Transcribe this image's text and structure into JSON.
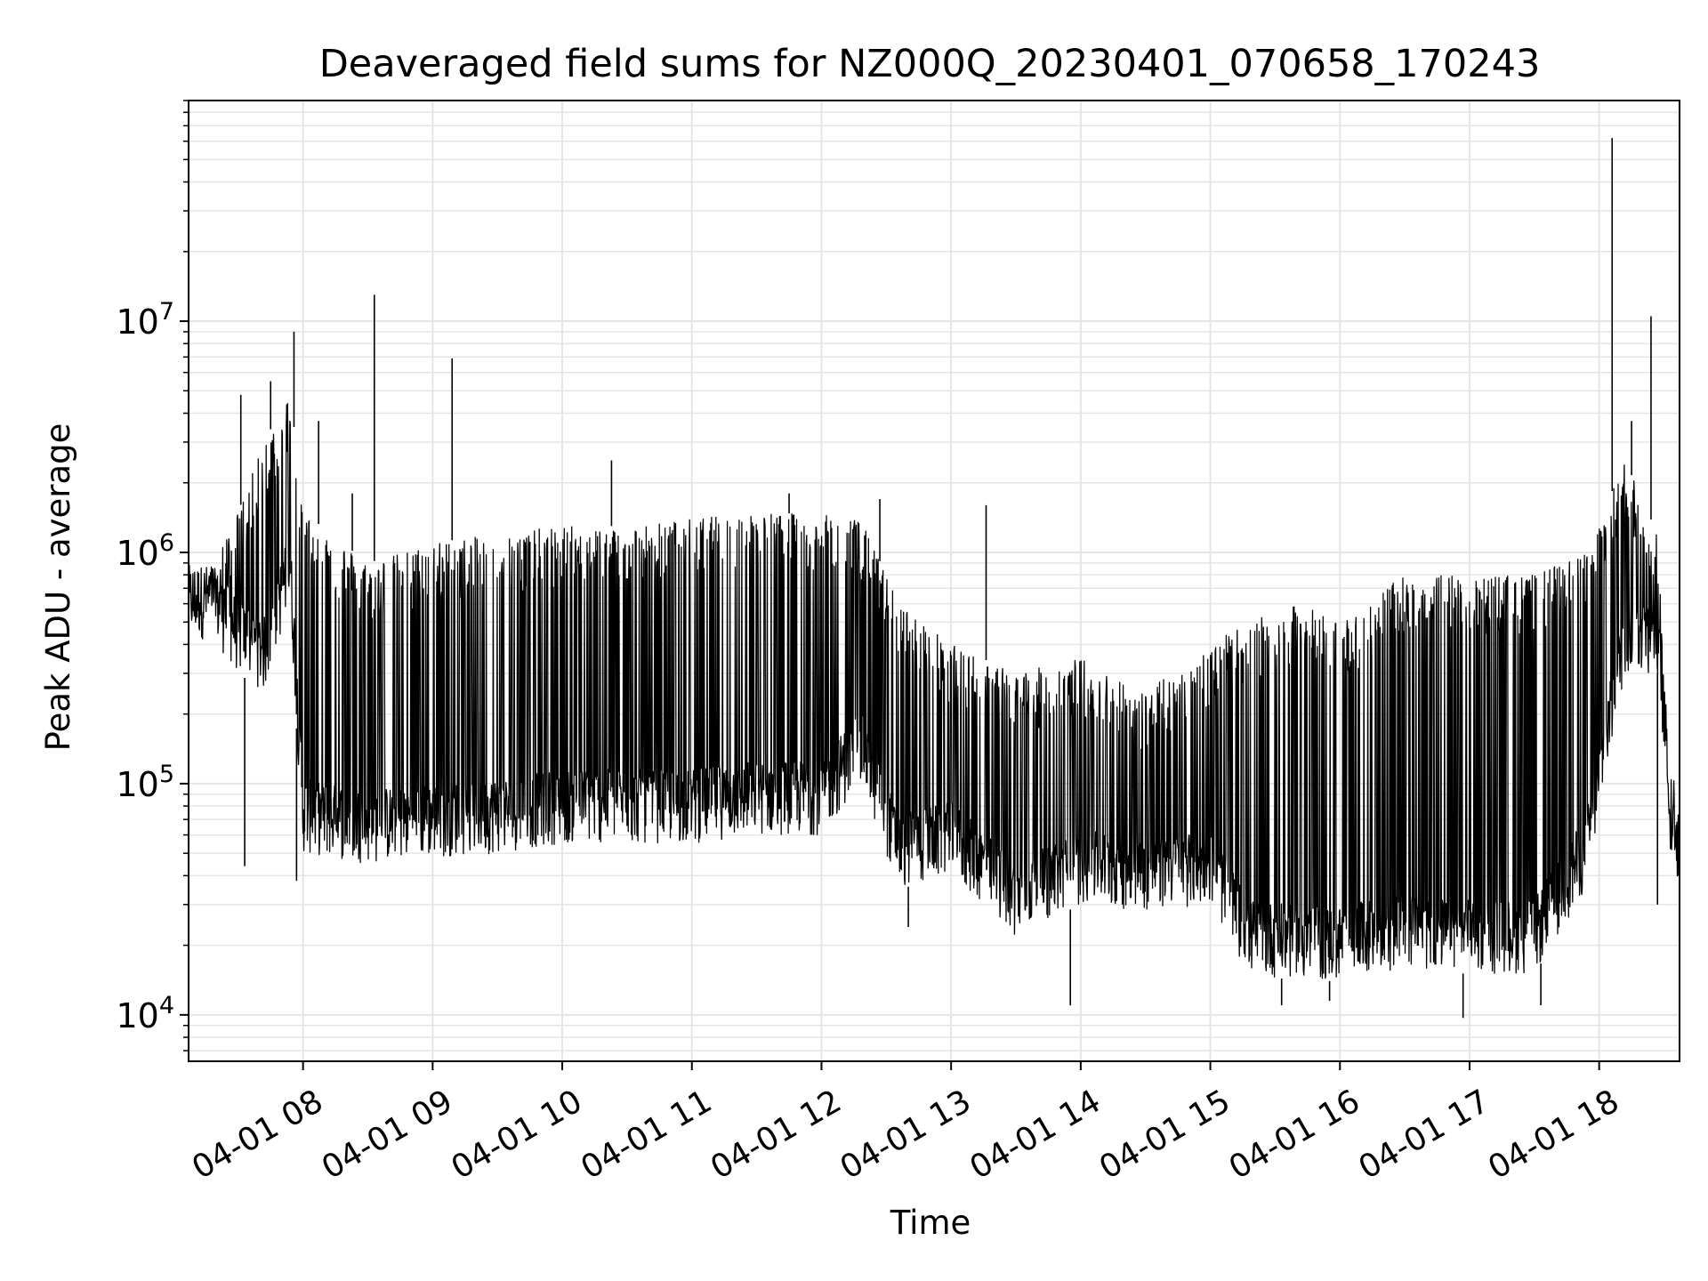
{
  "chart_data": {
    "type": "line",
    "title": "Deaveraged field sums for NZ000Q_20230401_070658_170243",
    "xlabel": "Time",
    "ylabel": "Peak ADU - average",
    "yscale": "log",
    "ylim": [
      6300,
      90000000
    ],
    "xlim_hours": [
      7.117,
      18.62
    ],
    "grid": true,
    "line_color": "#000000",
    "grid_color": "#e5e5e5",
    "y_ticks": [
      {
        "base": "10",
        "exp": "4",
        "value": 10000
      },
      {
        "base": "10",
        "exp": "5",
        "value": 100000
      },
      {
        "base": "10",
        "exp": "6",
        "value": 1000000
      },
      {
        "base": "10",
        "exp": "7",
        "value": 10000000
      }
    ],
    "x_ticks": [
      {
        "label": "04-01 08",
        "hour": 8
      },
      {
        "label": "04-01 09",
        "hour": 9
      },
      {
        "label": "04-01 10",
        "hour": 10
      },
      {
        "label": "04-01 11",
        "hour": 11
      },
      {
        "label": "04-01 12",
        "hour": 12
      },
      {
        "label": "04-01 13",
        "hour": 13
      },
      {
        "label": "04-01 14",
        "hour": 14
      },
      {
        "label": "04-01 15",
        "hour": 15
      },
      {
        "label": "04-01 16",
        "hour": 16
      },
      {
        "label": "04-01 17",
        "hour": 17
      },
      {
        "label": "04-01 18",
        "hour": 18
      }
    ],
    "envelope": [
      {
        "hour": 7.12,
        "low": 420000,
        "high": 700000
      },
      {
        "hour": 7.3,
        "low": 420000,
        "high": 900000
      },
      {
        "hour": 7.5,
        "low": 300000,
        "high": 1500000
      },
      {
        "hour": 7.7,
        "low": 250000,
        "high": 3000000
      },
      {
        "hour": 7.9,
        "low": 600000,
        "high": 5000000
      },
      {
        "hour": 8.0,
        "low": 50000,
        "high": 1500000
      },
      {
        "hour": 8.5,
        "low": 45000,
        "high": 900000
      },
      {
        "hour": 9.0,
        "low": 48000,
        "high": 1100000
      },
      {
        "hour": 9.5,
        "low": 50000,
        "high": 1200000
      },
      {
        "hour": 10.0,
        "low": 55000,
        "high": 1300000
      },
      {
        "hour": 10.5,
        "low": 55000,
        "high": 1300000
      },
      {
        "hour": 11.0,
        "low": 55000,
        "high": 1400000
      },
      {
        "hour": 11.5,
        "low": 60000,
        "high": 1500000
      },
      {
        "hour": 12.0,
        "low": 60000,
        "high": 1450000
      },
      {
        "hour": 12.3,
        "low": 100000,
        "high": 1400000
      },
      {
        "hour": 12.6,
        "low": 35000,
        "high": 600000
      },
      {
        "hour": 13.0,
        "low": 40000,
        "high": 400000
      },
      {
        "hour": 13.5,
        "low": 22000,
        "high": 300000
      },
      {
        "hour": 14.0,
        "low": 30000,
        "high": 350000
      },
      {
        "hour": 14.5,
        "low": 28000,
        "high": 250000
      },
      {
        "hour": 15.0,
        "low": 30000,
        "high": 400000
      },
      {
        "hour": 15.3,
        "low": 15000,
        "high": 500000
      },
      {
        "hour": 15.7,
        "low": 14000,
        "high": 600000
      },
      {
        "hour": 16.0,
        "low": 14000,
        "high": 500000
      },
      {
        "hour": 16.5,
        "low": 16000,
        "high": 800000
      },
      {
        "hour": 17.0,
        "low": 15000,
        "high": 800000
      },
      {
        "hour": 17.5,
        "low": 15000,
        "high": 800000
      },
      {
        "hour": 17.9,
        "low": 35000,
        "high": 1000000
      },
      {
        "hour": 18.2,
        "low": 300000,
        "high": 2500000
      },
      {
        "hour": 18.45,
        "low": 300000,
        "high": 1200000
      },
      {
        "hour": 18.55,
        "low": 60000,
        "high": 80000
      },
      {
        "hour": 18.62,
        "low": 40000,
        "high": 60000
      }
    ],
    "spikes": [
      {
        "hour": 7.52,
        "value": 4800000
      },
      {
        "hour": 7.55,
        "value": 44000
      },
      {
        "hour": 7.75,
        "value": 5500000
      },
      {
        "hour": 7.93,
        "value": 9000000
      },
      {
        "hour": 7.95,
        "value": 38000
      },
      {
        "hour": 8.12,
        "value": 3700000
      },
      {
        "hour": 8.38,
        "value": 1800000
      },
      {
        "hour": 8.55,
        "value": 13000000
      },
      {
        "hour": 9.15,
        "value": 6900000
      },
      {
        "hour": 10.38,
        "value": 2500000
      },
      {
        "hour": 11.75,
        "value": 1800000
      },
      {
        "hour": 12.45,
        "value": 1700000
      },
      {
        "hour": 12.67,
        "value": 24000
      },
      {
        "hour": 13.27,
        "value": 1600000
      },
      {
        "hour": 13.92,
        "value": 11000
      },
      {
        "hour": 15.55,
        "value": 11000
      },
      {
        "hour": 15.92,
        "value": 11500
      },
      {
        "hour": 16.95,
        "value": 9700
      },
      {
        "hour": 17.55,
        "value": 11000
      },
      {
        "hour": 18.1,
        "value": 62000000
      },
      {
        "hour": 18.25,
        "value": 3700000
      },
      {
        "hour": 18.4,
        "value": 10500000
      },
      {
        "hour": 18.45,
        "value": 30000
      }
    ]
  }
}
